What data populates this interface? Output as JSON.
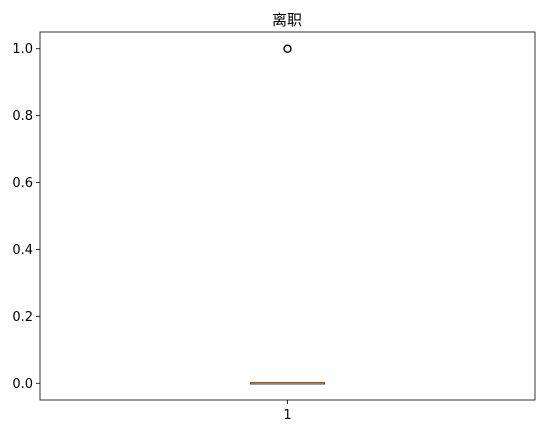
{
  "chart_data": {
    "type": "box",
    "title": "离职",
    "xlabel": "",
    "ylabel": "",
    "ylim": [
      -0.05,
      1.05
    ],
    "yticks": [
      "0.0",
      "0.2",
      "0.4",
      "0.6",
      "0.8",
      "1.0"
    ],
    "xticks": [
      "1"
    ],
    "grid": false,
    "boxes": [
      {
        "label": "1",
        "min": 0.0,
        "q1": 0.0,
        "median": 0.0,
        "q3": 0.0,
        "max": 0.0,
        "outliers": [
          1.0
        ]
      }
    ],
    "colors": {
      "box": "#000000",
      "median": "#ff7f0e",
      "outlier": "#000000"
    }
  }
}
